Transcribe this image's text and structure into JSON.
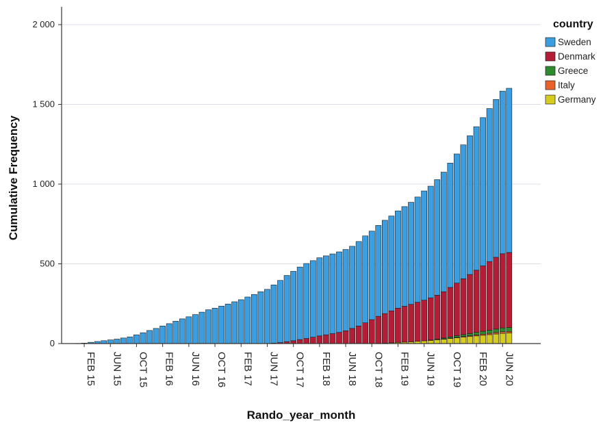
{
  "chart_data": {
    "type": "bar",
    "stacked": true,
    "cumulative": true,
    "xlabel": "Rando_year_month",
    "ylabel": "Cumulative Frequency",
    "ylim": [
      0,
      2000
    ],
    "y_ticks": [
      {
        "value": 0,
        "label": "0"
      },
      {
        "value": 500,
        "label": "500"
      },
      {
        "value": 1000,
        "label": "1 000"
      },
      {
        "value": 1500,
        "label": "1 500"
      },
      {
        "value": 2000,
        "label": "2 000"
      }
    ],
    "grid": "horizontal",
    "legend_title": "country",
    "legend_position": "top-right",
    "x_tick_labels": [
      "FEB 15",
      "JUN 15",
      "OCT 15",
      "FEB 16",
      "JUN 16",
      "OCT 16",
      "FEB 17",
      "JUN 17",
      "OCT 17",
      "FEB 18",
      "JUN 18",
      "OCT 18",
      "FEB 19",
      "JUN 19",
      "OCT 19",
      "FEB 20",
      "JUN 20"
    ],
    "categories": [
      "JAN 15",
      "FEB 15",
      "MAR 15",
      "APR 15",
      "MAY 15",
      "JUN 15",
      "JUL 15",
      "AUG 15",
      "SEP 15",
      "OCT 15",
      "NOV 15",
      "DEC 15",
      "JAN 16",
      "FEB 16",
      "MAR 16",
      "APR 16",
      "MAY 16",
      "JUN 16",
      "JUL 16",
      "AUG 16",
      "SEP 16",
      "OCT 16",
      "NOV 16",
      "DEC 16",
      "JAN 17",
      "FEB 17",
      "MAR 17",
      "APR 17",
      "MAY 17",
      "JUN 17",
      "JUL 17",
      "AUG 17",
      "SEP 17",
      "OCT 17",
      "NOV 17",
      "DEC 17",
      "JAN 18",
      "FEB 18",
      "MAR 18",
      "APR 18",
      "MAY 18",
      "JUN 18",
      "JUL 18",
      "AUG 18",
      "SEP 18",
      "OCT 18",
      "NOV 18",
      "DEC 18",
      "JAN 19",
      "FEB 19",
      "MAR 19",
      "APR 19",
      "MAY 19",
      "JUN 19",
      "JUL 19",
      "AUG 19",
      "SEP 19",
      "OCT 19",
      "NOV 19",
      "DEC 19",
      "JAN 20",
      "FEB 20",
      "MAR 20",
      "APR 20",
      "MAY 20",
      "JUN 20",
      "JUL 20"
    ],
    "stack_order": [
      "Germany",
      "Italy",
      "Greece",
      "Denmark",
      "Sweden"
    ],
    "series": [
      {
        "name": "Sweden",
        "color": "#3a9ee0",
        "values": [
          1,
          3,
          8,
          13,
          18,
          23,
          28,
          35,
          42,
          55,
          68,
          82,
          95,
          110,
          125,
          140,
          155,
          168,
          182,
          197,
          212,
          222,
          235,
          248,
          262,
          275,
          292,
          308,
          325,
          340,
          365,
          390,
          415,
          435,
          455,
          470,
          480,
          490,
          495,
          500,
          505,
          510,
          515,
          530,
          545,
          555,
          570,
          585,
          595,
          610,
          625,
          640,
          660,
          685,
          700,
          725,
          750,
          780,
          810,
          840,
          870,
          900,
          930,
          960,
          990,
          1020,
          1030
        ]
      },
      {
        "name": "Denmark",
        "color": "#b51c36",
        "values": [
          0,
          0,
          0,
          0,
          0,
          0,
          0,
          0,
          0,
          0,
          0,
          0,
          0,
          0,
          0,
          0,
          0,
          0,
          0,
          0,
          0,
          0,
          0,
          0,
          0,
          0,
          0,
          0,
          0,
          0,
          3,
          6,
          12,
          18,
          25,
          32,
          40,
          48,
          55,
          62,
          70,
          80,
          95,
          110,
          130,
          150,
          170,
          185,
          200,
          215,
          225,
          235,
          245,
          255,
          265,
          275,
          290,
          310,
          330,
          350,
          370,
          390,
          410,
          430,
          450,
          465,
          470
        ]
      },
      {
        "name": "Greece",
        "color": "#2d8a2d",
        "values": [
          0,
          0,
          0,
          0,
          0,
          0,
          0,
          0,
          0,
          0,
          0,
          0,
          0,
          0,
          0,
          0,
          0,
          0,
          0,
          0,
          0,
          0,
          0,
          0,
          0,
          0,
          0,
          0,
          0,
          0,
          0,
          0,
          0,
          0,
          0,
          0,
          0,
          0,
          0,
          0,
          0,
          0,
          0,
          0,
          0,
          0,
          0,
          0,
          0,
          0,
          0,
          0,
          0,
          0,
          2,
          4,
          6,
          8,
          10,
          12,
          14,
          16,
          18,
          20,
          22,
          24,
          25
        ]
      },
      {
        "name": "Italy",
        "color": "#e8622a",
        "values": [
          0,
          0,
          0,
          0,
          0,
          0,
          0,
          0,
          0,
          0,
          0,
          0,
          0,
          0,
          0,
          0,
          0,
          0,
          0,
          0,
          0,
          0,
          0,
          0,
          0,
          0,
          0,
          0,
          0,
          0,
          0,
          0,
          0,
          0,
          0,
          0,
          0,
          0,
          0,
          0,
          0,
          0,
          0,
          0,
          0,
          0,
          0,
          0,
          0,
          0,
          0,
          0,
          0,
          0,
          0,
          0,
          1,
          2,
          3,
          4,
          5,
          6,
          7,
          8,
          9,
          10,
          10
        ]
      },
      {
        "name": "Germany",
        "color": "#d6cc1e",
        "values": [
          0,
          0,
          0,
          0,
          0,
          0,
          0,
          0,
          0,
          0,
          0,
          0,
          0,
          0,
          0,
          0,
          0,
          0,
          0,
          0,
          0,
          0,
          0,
          0,
          0,
          0,
          0,
          0,
          0,
          0,
          0,
          0,
          0,
          0,
          0,
          0,
          0,
          0,
          0,
          0,
          0,
          0,
          0,
          0,
          0,
          0,
          1,
          3,
          5,
          7,
          9,
          11,
          14,
          17,
          20,
          24,
          28,
          32,
          36,
          40,
          44,
          48,
          52,
          56,
          60,
          64,
          66
        ]
      }
    ]
  }
}
